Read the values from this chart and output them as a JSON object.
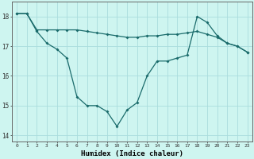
{
  "xlabel": "Humidex (Indice chaleur)",
  "background_color": "#cef5f0",
  "grid_color": "#aadddd",
  "line_color": "#1a6b6b",
  "x_values": [
    0,
    1,
    2,
    3,
    4,
    5,
    6,
    7,
    8,
    9,
    10,
    11,
    12,
    13,
    14,
    15,
    16,
    17,
    18,
    19,
    20,
    21,
    22,
    23
  ],
  "line1": [
    18.1,
    18.1,
    17.5,
    17.1,
    16.9,
    16.6,
    15.3,
    15.0,
    15.0,
    14.8,
    14.3,
    14.85,
    15.1,
    16.0,
    16.5,
    16.5,
    16.6,
    16.7,
    18.0,
    17.8,
    17.35,
    17.1,
    17.0,
    16.8
  ],
  "line2": [
    18.1,
    18.1,
    17.55,
    17.55,
    17.55,
    17.55,
    17.55,
    17.5,
    17.45,
    17.4,
    17.35,
    17.3,
    17.3,
    17.35,
    17.35,
    17.4,
    17.4,
    17.45,
    17.5,
    17.4,
    17.3,
    17.1,
    17.0,
    16.8
  ],
  "ylim": [
    13.8,
    18.5
  ],
  "xlim": [
    -0.5,
    23.5
  ],
  "yticks": [
    14,
    15,
    16,
    17,
    18
  ],
  "xtick_labels": [
    "0",
    "1",
    "2",
    "3",
    "4",
    "5",
    "6",
    "7",
    "8",
    "9",
    "10",
    "11",
    "12",
    "13",
    "14",
    "15",
    "16",
    "17",
    "18",
    "19",
    "20",
    "21",
    "22",
    "23"
  ]
}
